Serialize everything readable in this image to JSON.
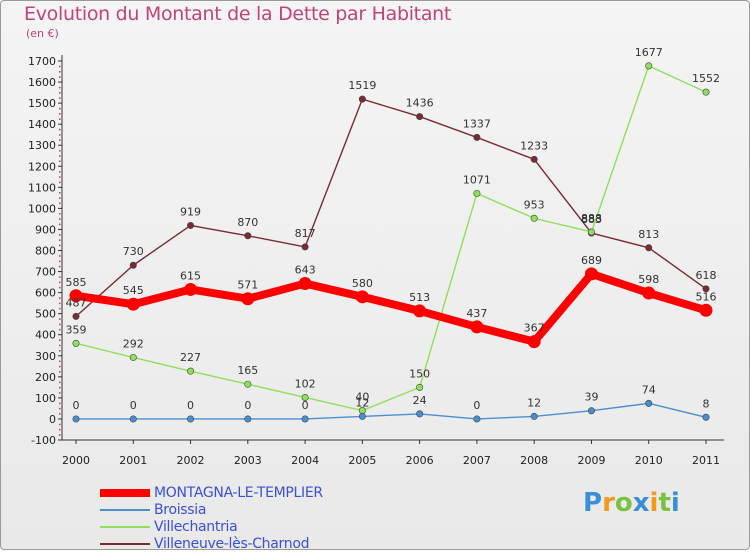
{
  "chart_data": {
    "type": "line",
    "title": "Evolution du Montant de la Dette par Habitant",
    "unit_label": "(en €)",
    "x": [
      "2000",
      "2001",
      "2002",
      "2003",
      "2004",
      "2005",
      "2006",
      "2007",
      "2008",
      "2009",
      "2010",
      "2011"
    ],
    "ylim": [
      -100,
      1700
    ],
    "yticks": [
      -100,
      0,
      100,
      200,
      300,
      400,
      500,
      600,
      700,
      800,
      900,
      1000,
      1100,
      1200,
      1300,
      1400,
      1500,
      1600,
      1700
    ],
    "grid": false,
    "legend_position": "bottom-left",
    "series": [
      {
        "name": "MONTAGNA-LE-TEMPLIER",
        "color": "#ff0000",
        "values": [
          585,
          545,
          615,
          571,
          643,
          580,
          513,
          437,
          367,
          689,
          598,
          516
        ]
      },
      {
        "name": "Broissia",
        "color": "#4a8ed0",
        "values": [
          0,
          0,
          0,
          0,
          0,
          12,
          24,
          0,
          12,
          39,
          74,
          8
        ]
      },
      {
        "name": "Villechantria",
        "color": "#8ee05a",
        "values": [
          359,
          292,
          227,
          165,
          102,
          40,
          150,
          1071,
          953,
          888,
          1677,
          1552
        ]
      },
      {
        "name": "Villeneuve-lès-Charnod",
        "color": "#7a2a30",
        "values": [
          487,
          730,
          919,
          870,
          817,
          1519,
          1436,
          1337,
          1233,
          883,
          813,
          618
        ]
      }
    ]
  },
  "logo": {
    "text": "Proxiti",
    "colors": [
      "#3a8fd8",
      "#f39a1c",
      "#7cc242",
      "#3a8fd8",
      "#f39a1c",
      "#7cc242",
      "#3a8fd8"
    ]
  }
}
